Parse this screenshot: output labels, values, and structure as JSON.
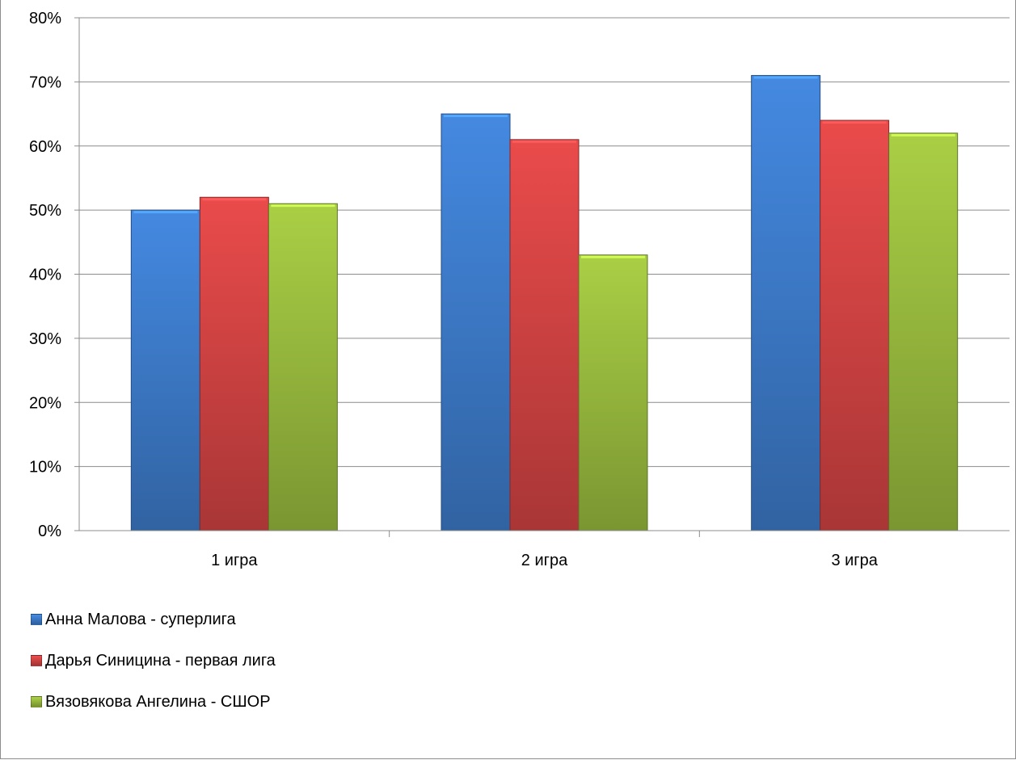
{
  "chart_data": {
    "type": "bar",
    "categories": [
      "1 игра",
      "2 игра",
      "3 игра"
    ],
    "series": [
      {
        "name": "Анна Малова - суперлига",
        "values": [
          50,
          65,
          71
        ],
        "color": "#3f7fd0"
      },
      {
        "name": "Дарья Синицина - первая лига",
        "values": [
          52,
          61,
          64
        ],
        "color": "#d94545"
      },
      {
        "name": "Вязовякова Ангелина - СШОР",
        "values": [
          51,
          43,
          62
        ],
        "color": "#9dc040"
      }
    ],
    "ylim": [
      0,
      80
    ],
    "yticks": [
      "0%",
      "10%",
      "20%",
      "30%",
      "40%",
      "50%",
      "60%",
      "70%",
      "80%"
    ],
    "grid": true,
    "legend_position": "bottom-left",
    "title": "",
    "xlabel": "",
    "ylabel": ""
  }
}
